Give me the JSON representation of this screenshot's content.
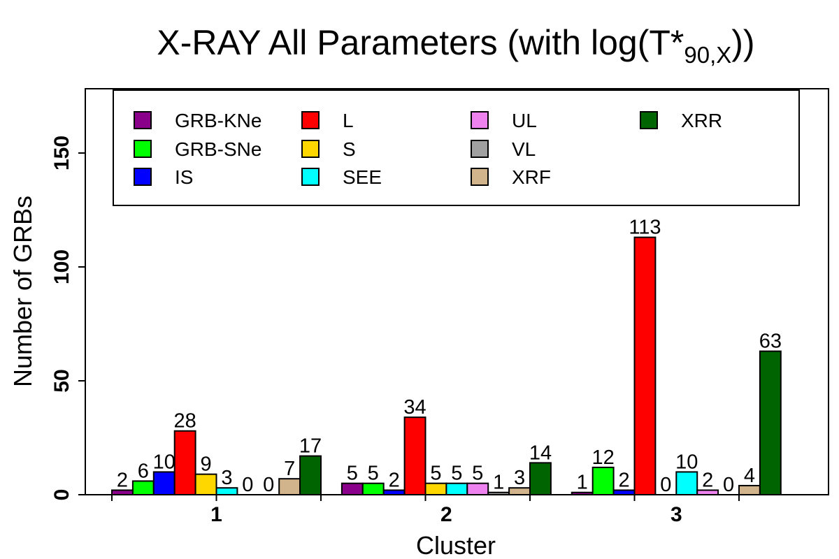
{
  "chart_data": {
    "type": "bar",
    "title": {
      "main": "X-RAY All Parameters (with log(T*",
      "sub": "90,X",
      "close": "))"
    },
    "xlabel": "Cluster",
    "ylabel": "Number of GRBs",
    "ylim": [
      0,
      180
    ],
    "yticks": [
      0,
      50,
      100,
      150
    ],
    "categories": [
      "1",
      "2",
      "3"
    ],
    "legend_position": "top",
    "series": [
      {
        "name": "GRB-KNe",
        "color": "#8B008B",
        "values": [
          2,
          5,
          1
        ]
      },
      {
        "name": "GRB-SNe",
        "color": "#00FF00",
        "values": [
          6,
          5,
          12
        ]
      },
      {
        "name": "IS",
        "color": "#0000FF",
        "values": [
          10,
          2,
          2
        ]
      },
      {
        "name": "L",
        "color": "#FF0000",
        "values": [
          28,
          34,
          113
        ]
      },
      {
        "name": "S",
        "color": "#FFD700",
        "values": [
          9,
          5,
          0
        ]
      },
      {
        "name": "SEE",
        "color": "#00FFFF",
        "values": [
          3,
          5,
          10
        ]
      },
      {
        "name": "UL",
        "color": "#EE82EE",
        "values": [
          0,
          5,
          2
        ]
      },
      {
        "name": "VL",
        "color": "#A0A0A0",
        "values": [
          0,
          1,
          0
        ]
      },
      {
        "name": "XRF",
        "color": "#D2B48C",
        "values": [
          7,
          3,
          4
        ]
      },
      {
        "name": "XRR",
        "color": "#006400",
        "values": [
          17,
          14,
          63
        ]
      }
    ]
  }
}
